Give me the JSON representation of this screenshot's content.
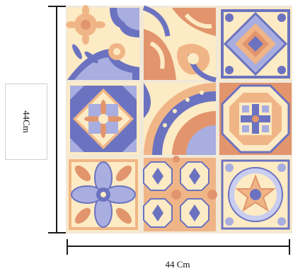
{
  "dimension_vertical": "44Cm",
  "dimension_horizontal": "44 Cm",
  "colors": {
    "cream": "#fcebc4",
    "peach": "#f0b586",
    "orange": "#e2956d",
    "blue": "#6b72c0",
    "lavender": "#a9aee0",
    "light_blue": "#c9cdef",
    "white": "#ffffff",
    "line": "#1a1a1a"
  },
  "tiles": [
    {
      "row": 1,
      "col": 1,
      "motif": "corner-flower"
    },
    {
      "row": 1,
      "col": 2,
      "motif": "orange-arabesque"
    },
    {
      "row": 1,
      "col": 3,
      "motif": "diamond-cross"
    },
    {
      "row": 2,
      "col": 1,
      "motif": "star-square"
    },
    {
      "row": 2,
      "col": 2,
      "motif": "fan-rosette"
    },
    {
      "row": 2,
      "col": 3,
      "motif": "octagon-cross"
    },
    {
      "row": 3,
      "col": 1,
      "motif": "petal-cross"
    },
    {
      "row": 3,
      "col": 2,
      "motif": "octagon-grid"
    },
    {
      "row": 3,
      "col": 3,
      "motif": "star-medallion"
    }
  ]
}
